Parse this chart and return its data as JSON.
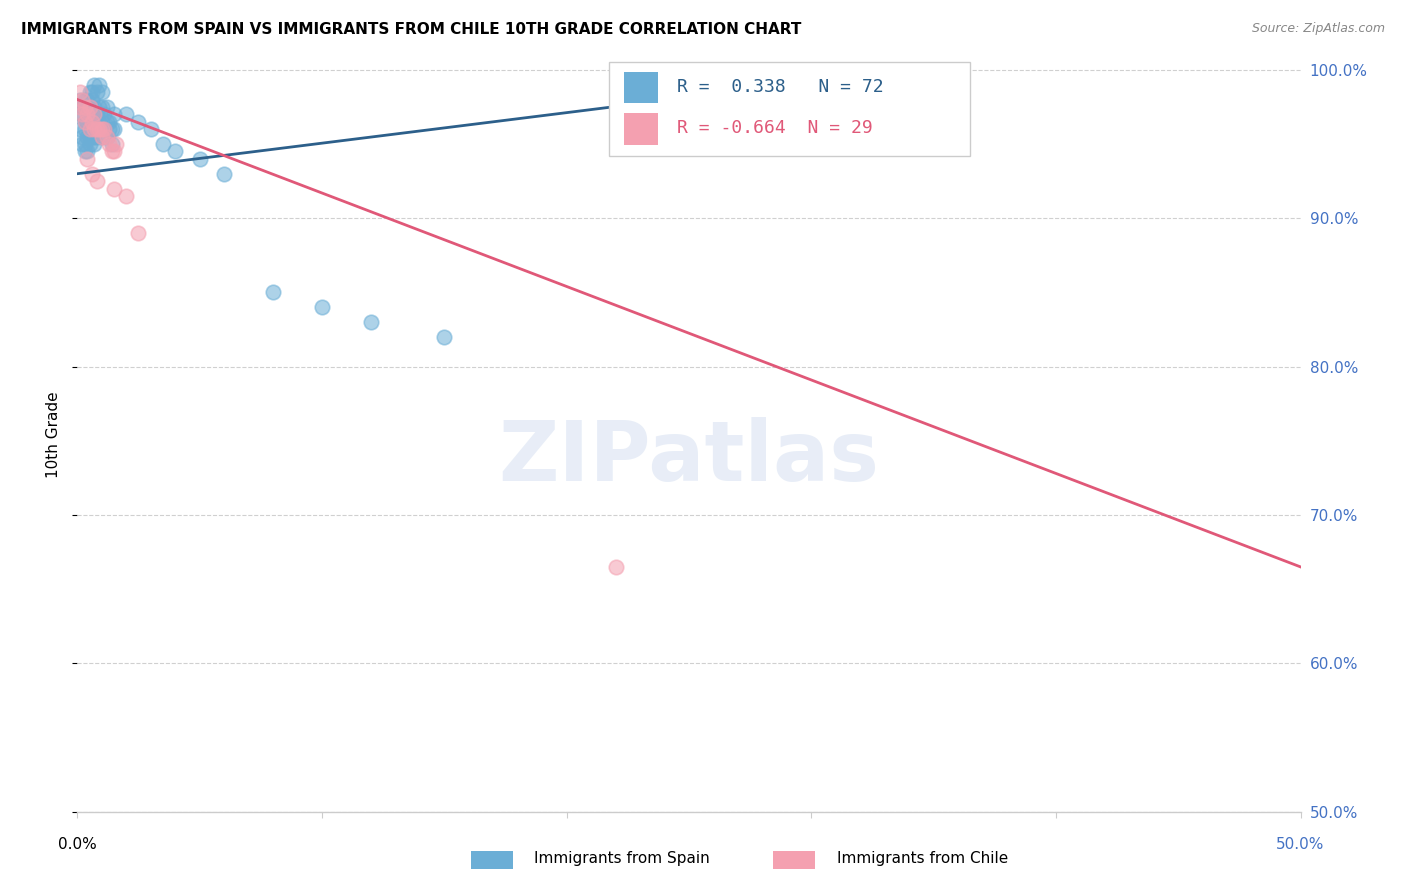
{
  "title": "IMMIGRANTS FROM SPAIN VS IMMIGRANTS FROM CHILE 10TH GRADE CORRELATION CHART",
  "source": "Source: ZipAtlas.com",
  "ylabel": "10th Grade",
  "xmin": 0.0,
  "xmax": 0.5,
  "ymin": 0.5,
  "ymax": 1.008,
  "yticks": [
    0.5,
    0.6,
    0.7,
    0.8,
    0.9,
    1.0
  ],
  "ytick_labels": [
    "50.0%",
    "60.0%",
    "70.0%",
    "80.0%",
    "90.0%",
    "100.0%"
  ],
  "spain_color": "#6baed6",
  "chile_color": "#f4a0b0",
  "spain_line_color": "#2c5f8a",
  "chile_line_color": "#e05878",
  "spain_R": 0.338,
  "spain_N": 72,
  "chile_R": -0.664,
  "chile_N": 29,
  "watermark": "ZIPatlas",
  "background_color": "#ffffff",
  "grid_color": "#d0d0d0",
  "right_axis_color": "#4472c4",
  "spain_line_x0": 0.0,
  "spain_line_y0": 0.93,
  "spain_line_x1": 0.345,
  "spain_line_y1": 1.001,
  "chile_line_x0": 0.0,
  "chile_line_y0": 0.98,
  "chile_line_x1": 0.5,
  "chile_line_y1": 0.665,
  "spain_scatter_x": [
    0.001,
    0.002,
    0.002,
    0.003,
    0.003,
    0.003,
    0.004,
    0.004,
    0.004,
    0.005,
    0.005,
    0.005,
    0.006,
    0.006,
    0.006,
    0.007,
    0.007,
    0.007,
    0.008,
    0.008,
    0.009,
    0.009,
    0.01,
    0.01,
    0.011,
    0.012,
    0.012,
    0.013,
    0.014,
    0.015,
    0.001,
    0.002,
    0.003,
    0.003,
    0.004,
    0.004,
    0.005,
    0.005,
    0.006,
    0.006,
    0.007,
    0.007,
    0.008,
    0.009,
    0.01,
    0.011,
    0.012,
    0.013,
    0.014,
    0.015,
    0.001,
    0.002,
    0.003,
    0.004,
    0.005,
    0.006,
    0.007,
    0.008,
    0.009,
    0.01,
    0.02,
    0.025,
    0.03,
    0.035,
    0.04,
    0.05,
    0.06,
    0.08,
    0.1,
    0.12,
    0.15,
    0.34
  ],
  "spain_scatter_y": [
    0.96,
    0.955,
    0.97,
    0.95,
    0.96,
    0.975,
    0.945,
    0.965,
    0.975,
    0.955,
    0.965,
    0.975,
    0.96,
    0.97,
    0.98,
    0.955,
    0.965,
    0.975,
    0.96,
    0.97,
    0.965,
    0.975,
    0.965,
    0.975,
    0.97,
    0.965,
    0.975,
    0.965,
    0.96,
    0.97,
    0.97,
    0.95,
    0.945,
    0.965,
    0.955,
    0.975,
    0.95,
    0.96,
    0.955,
    0.965,
    0.95,
    0.96,
    0.955,
    0.96,
    0.955,
    0.96,
    0.955,
    0.96,
    0.95,
    0.96,
    0.98,
    0.975,
    0.98,
    0.98,
    0.985,
    0.985,
    0.99,
    0.985,
    0.99,
    0.985,
    0.97,
    0.965,
    0.96,
    0.95,
    0.945,
    0.94,
    0.93,
    0.85,
    0.84,
    0.83,
    0.82,
    1.0
  ],
  "chile_scatter_x": [
    0.001,
    0.002,
    0.003,
    0.003,
    0.004,
    0.005,
    0.005,
    0.006,
    0.007,
    0.007,
    0.008,
    0.009,
    0.01,
    0.01,
    0.011,
    0.012,
    0.013,
    0.014,
    0.015,
    0.016,
    0.001,
    0.002,
    0.004,
    0.006,
    0.008,
    0.015,
    0.02,
    0.025,
    0.22
  ],
  "chile_scatter_y": [
    0.975,
    0.97,
    0.975,
    0.965,
    0.97,
    0.96,
    0.975,
    0.965,
    0.96,
    0.97,
    0.96,
    0.96,
    0.96,
    0.955,
    0.96,
    0.955,
    0.95,
    0.945,
    0.945,
    0.95,
    0.985,
    0.98,
    0.94,
    0.93,
    0.925,
    0.92,
    0.915,
    0.89,
    0.665
  ]
}
